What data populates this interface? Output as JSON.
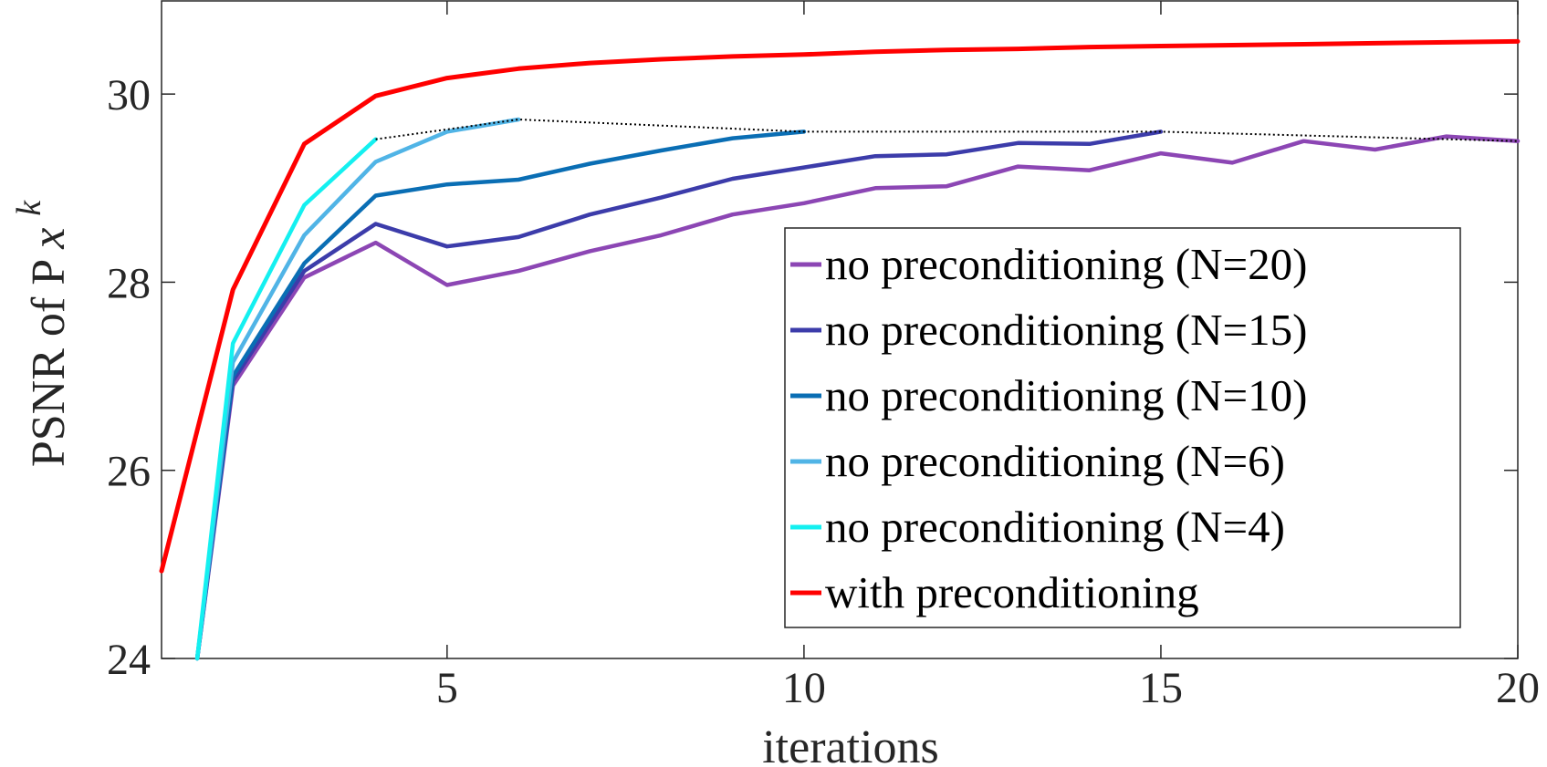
{
  "chart_data": {
    "type": "line",
    "xlabel": "iterations",
    "ylabel": "PSNR of P",
    "ylabel_sub": "x",
    "ylabel_sup": "k",
    "xlim": [
      1,
      20
    ],
    "ylim": [
      24,
      31
    ],
    "xticks": [
      5,
      10,
      15,
      20
    ],
    "yticks": [
      24,
      26,
      28,
      30
    ],
    "grid": false,
    "legend_position": "bottom-right",
    "series": [
      {
        "name": "no preconditioning (N=20)",
        "color": "#8c46b4",
        "x": [
          1.5,
          2,
          3,
          4,
          5,
          6,
          7,
          8,
          9,
          10,
          11,
          12,
          13,
          14,
          15,
          16,
          17,
          18,
          19,
          20
        ],
        "y": [
          24.0,
          26.9,
          28.05,
          28.42,
          27.97,
          28.12,
          28.33,
          28.5,
          28.72,
          28.84,
          29.0,
          29.02,
          29.23,
          29.19,
          29.37,
          29.27,
          29.5,
          29.41,
          29.55,
          29.5
        ]
      },
      {
        "name": "no preconditioning (N=15)",
        "color": "#3c3caa",
        "x": [
          1.5,
          2,
          3,
          4,
          5,
          6,
          7,
          8,
          9,
          10,
          11,
          12,
          13,
          14,
          15
        ],
        "y": [
          24.0,
          26.95,
          28.12,
          28.62,
          28.38,
          28.48,
          28.72,
          28.9,
          29.1,
          29.22,
          29.34,
          29.36,
          29.48,
          29.47,
          29.6
        ]
      },
      {
        "name": "no preconditioning (N=10)",
        "color": "#0a6eb4",
        "x": [
          1.5,
          2,
          3,
          4,
          5,
          6,
          7,
          8,
          9,
          10
        ],
        "y": [
          24.0,
          27.0,
          28.2,
          28.92,
          29.04,
          29.09,
          29.26,
          29.4,
          29.53,
          29.6
        ]
      },
      {
        "name": "no preconditioning (N=6)",
        "color": "#50b4e6",
        "x": [
          1.5,
          2,
          3,
          4,
          5,
          6
        ],
        "y": [
          24.0,
          27.15,
          28.5,
          29.28,
          29.6,
          29.73
        ]
      },
      {
        "name": "no preconditioning (N=4)",
        "color": "#14f0f0",
        "x": [
          1.5,
          2,
          3,
          4
        ],
        "y": [
          24.0,
          27.35,
          28.82,
          29.52
        ]
      },
      {
        "name": "with preconditioning",
        "color": "#ff0000",
        "x": [
          1,
          2,
          3,
          4,
          5,
          6,
          7,
          8,
          9,
          10,
          11,
          12,
          13,
          14,
          15,
          16,
          17,
          18,
          19,
          20
        ],
        "y": [
          24.93,
          27.92,
          29.47,
          29.98,
          30.17,
          30.27,
          30.33,
          30.37,
          30.4,
          30.42,
          30.45,
          30.47,
          30.48,
          30.5,
          30.51,
          30.52,
          30.53,
          30.54,
          30.55,
          30.56
        ]
      }
    ],
    "envelope": {
      "color": "#000000",
      "x": [
        4,
        6,
        10,
        15,
        20
      ],
      "y": [
        29.52,
        29.73,
        29.6,
        29.6,
        29.5
      ]
    }
  }
}
